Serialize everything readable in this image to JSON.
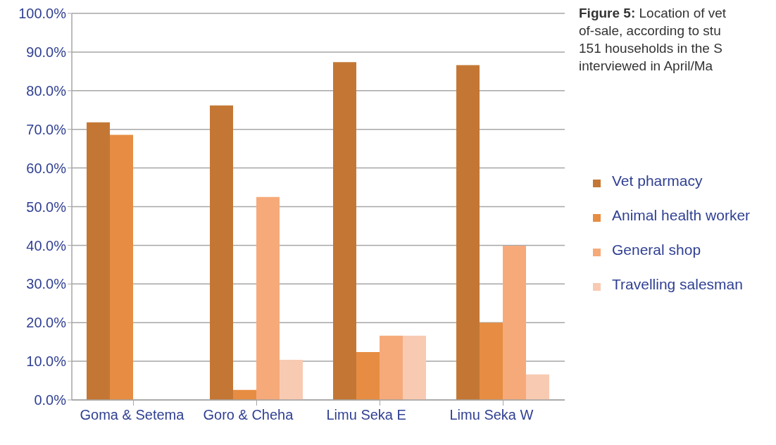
{
  "chart_data": {
    "type": "bar",
    "title": "Figure 5:",
    "annotations": [
      "Location of vet",
      "of-sale, according to stu",
      "151 households in the S",
      "interviewed in April/Ma"
    ],
    "categories": [
      "Goma & Setema",
      "Goro & Cheha",
      "Limu Seka E",
      "Limu Seka W"
    ],
    "series": [
      {
        "name": "Vet pharmacy",
        "color": "#c47735",
        "values": [
          71.8,
          76.2,
          87.4,
          86.6
        ]
      },
      {
        "name": "Animal health worker",
        "color": "#e68d43",
        "values": [
          68.6,
          2.6,
          12.4,
          20.0
        ]
      },
      {
        "name": "General shop",
        "color": "#f6aa7a",
        "values": [
          null,
          52.5,
          16.6,
          39.9
        ]
      },
      {
        "name": "Travelling salesman",
        "color": "#f8cab2",
        "values": [
          null,
          10.4,
          16.6,
          6.6
        ]
      }
    ],
    "ylim": [
      0,
      100
    ],
    "yticks": [
      {
        "value": 0,
        "label": "0.0%"
      },
      {
        "value": 10,
        "label": "10.0%"
      },
      {
        "value": 20,
        "label": "20.0%"
      },
      {
        "value": 30,
        "label": "30.0%"
      },
      {
        "value": 40,
        "label": "40.0%"
      },
      {
        "value": 50,
        "label": "50.0%"
      },
      {
        "value": 60,
        "label": "60.0%"
      },
      {
        "value": 70,
        "label": "70.0%"
      },
      {
        "value": 80,
        "label": "80.0%"
      },
      {
        "value": 90,
        "label": "90.0%"
      },
      {
        "value": 100,
        "label": "100.0%"
      }
    ],
    "grid": "y",
    "legend": "right"
  }
}
